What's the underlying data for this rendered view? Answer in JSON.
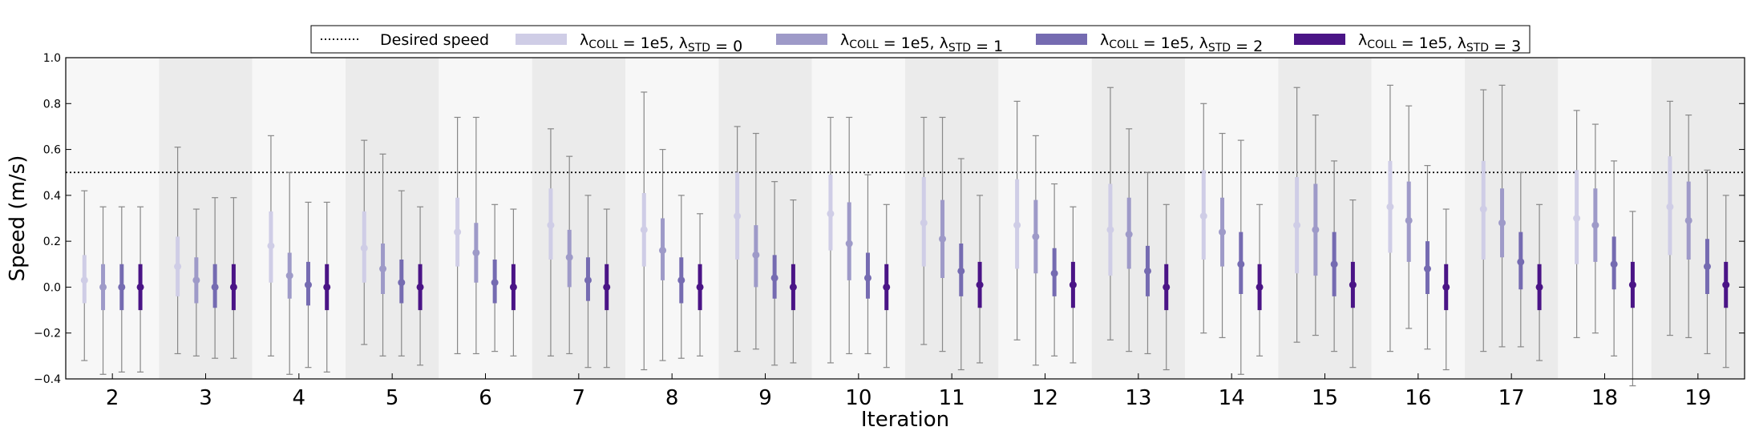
{
  "chart_data": {
    "type": "errorbar",
    "title": "",
    "xlabel": "Iteration",
    "ylabel": "Speed (m/s)",
    "ylim": [
      -0.4,
      1.0
    ],
    "y_ticks": [
      "−0.4",
      "−0.2",
      "0.0",
      "0.2",
      "0.4",
      "0.6",
      "0.8",
      "1.0"
    ],
    "y_tick_values": [
      -0.4,
      -0.2,
      0.0,
      0.2,
      0.4,
      0.6,
      0.8,
      1.0
    ],
    "categories": [
      "2",
      "3",
      "4",
      "5",
      "6",
      "7",
      "8",
      "9",
      "10",
      "11",
      "12",
      "13",
      "14",
      "15",
      "16",
      "17",
      "18",
      "19"
    ],
    "reference_line": {
      "label": "Desired speed",
      "value": 0.5,
      "style": "dotted",
      "color": "#000000"
    },
    "legend": {
      "position": "top-center",
      "entries": [
        {
          "key": "desired",
          "label": "Desired speed"
        },
        {
          "key": "s0",
          "prefix": "λ",
          "sub1": "COLL",
          "mid": " = 1e5, λ",
          "sub2": "STD",
          "suffix": " = 0"
        },
        {
          "key": "s1",
          "prefix": "λ",
          "sub1": "COLL",
          "mid": " = 1e5, λ",
          "sub2": "STD",
          "suffix": " = 1"
        },
        {
          "key": "s2",
          "prefix": "λ",
          "sub1": "COLL",
          "mid": " = 1e5, λ",
          "sub2": "STD",
          "suffix": " = 2"
        },
        {
          "key": "s3",
          "prefix": "λ",
          "sub1": "COLL",
          "mid": " = 1e5, λ",
          "sub2": "STD",
          "suffix": " = 3"
        }
      ]
    },
    "series": [
      {
        "name": "λCOLL = 1e5, λSTD = 0",
        "color": "#cfcde6",
        "mean": [
          0.03,
          0.09,
          0.18,
          0.17,
          0.24,
          0.27,
          0.25,
          0.31,
          0.32,
          0.28,
          0.27,
          0.25,
          0.31,
          0.27,
          0.35,
          0.34,
          0.3,
          0.35
        ],
        "std_lo": [
          -0.07,
          -0.04,
          0.02,
          0.02,
          0.09,
          0.12,
          0.09,
          0.12,
          0.16,
          0.09,
          0.08,
          0.05,
          0.12,
          0.06,
          0.15,
          0.12,
          0.1,
          0.14
        ],
        "std_hi": [
          0.14,
          0.22,
          0.33,
          0.33,
          0.39,
          0.43,
          0.41,
          0.5,
          0.49,
          0.48,
          0.47,
          0.45,
          0.51,
          0.48,
          0.55,
          0.55,
          0.51,
          0.57
        ],
        "min": [
          -0.32,
          -0.29,
          -0.3,
          -0.25,
          -0.29,
          -0.3,
          -0.36,
          -0.28,
          -0.33,
          -0.25,
          -0.23,
          -0.23,
          -0.2,
          -0.24,
          -0.28,
          -0.28,
          -0.22,
          -0.21
        ],
        "max": [
          0.42,
          0.61,
          0.66,
          0.64,
          0.74,
          0.69,
          0.85,
          0.7,
          0.74,
          0.74,
          0.81,
          0.87,
          0.8,
          0.87,
          0.88,
          0.86,
          0.77,
          0.81
        ]
      },
      {
        "name": "λCOLL = 1e5, λSTD = 1",
        "color": "#9e9ac8",
        "mean": [
          0.0,
          0.03,
          0.05,
          0.08,
          0.15,
          0.13,
          0.16,
          0.14,
          0.19,
          0.21,
          0.22,
          0.23,
          0.24,
          0.25,
          0.29,
          0.28,
          0.27,
          0.29
        ],
        "std_lo": [
          -0.1,
          -0.07,
          -0.05,
          -0.03,
          0.02,
          0.0,
          0.03,
          0.0,
          0.03,
          0.04,
          0.06,
          0.08,
          0.09,
          0.05,
          0.11,
          0.13,
          0.11,
          0.12
        ],
        "std_hi": [
          0.1,
          0.13,
          0.15,
          0.19,
          0.28,
          0.25,
          0.3,
          0.27,
          0.37,
          0.38,
          0.38,
          0.39,
          0.39,
          0.45,
          0.46,
          0.43,
          0.43,
          0.46
        ],
        "min": [
          -0.38,
          -0.3,
          -0.38,
          -0.3,
          -0.29,
          -0.29,
          -0.32,
          -0.27,
          -0.29,
          -0.28,
          -0.34,
          -0.28,
          -0.22,
          -0.21,
          -0.18,
          -0.26,
          -0.2,
          -0.22
        ],
        "max": [
          0.35,
          0.34,
          0.5,
          0.58,
          0.74,
          0.57,
          0.6,
          0.67,
          0.74,
          0.74,
          0.66,
          0.69,
          0.67,
          0.75,
          0.79,
          0.88,
          0.71,
          0.75
        ]
      },
      {
        "name": "λCOLL = 1e5, λSTD = 2",
        "color": "#756bb1",
        "mean": [
          0.0,
          0.0,
          0.01,
          0.02,
          0.02,
          0.03,
          0.03,
          0.04,
          0.04,
          0.07,
          0.06,
          0.07,
          0.1,
          0.1,
          0.08,
          0.11,
          0.1,
          0.09
        ],
        "std_lo": [
          -0.1,
          -0.09,
          -0.08,
          -0.07,
          -0.07,
          -0.06,
          -0.07,
          -0.05,
          -0.05,
          -0.04,
          -0.04,
          -0.04,
          -0.03,
          -0.04,
          -0.03,
          -0.01,
          -0.01,
          -0.03
        ],
        "std_hi": [
          0.1,
          0.1,
          0.11,
          0.12,
          0.12,
          0.13,
          0.13,
          0.14,
          0.15,
          0.19,
          0.17,
          0.18,
          0.24,
          0.24,
          0.2,
          0.24,
          0.22,
          0.21
        ],
        "min": [
          -0.37,
          -0.31,
          -0.35,
          -0.3,
          -0.28,
          -0.35,
          -0.31,
          -0.34,
          -0.29,
          -0.36,
          -0.3,
          -0.29,
          -0.38,
          -0.28,
          -0.27,
          -0.26,
          -0.3,
          -0.29
        ],
        "max": [
          0.35,
          0.39,
          0.37,
          0.42,
          0.36,
          0.4,
          0.4,
          0.46,
          0.49,
          0.56,
          0.45,
          0.5,
          0.64,
          0.55,
          0.53,
          0.5,
          0.55,
          0.51
        ]
      },
      {
        "name": "λCOLL = 1e5, λSTD = 3",
        "color": "#4a1486",
        "mean": [
          0.0,
          0.0,
          0.0,
          0.0,
          0.0,
          0.0,
          0.0,
          0.0,
          0.0,
          0.01,
          0.01,
          0.0,
          0.0,
          0.01,
          0.0,
          0.0,
          0.01,
          0.01
        ],
        "std_lo": [
          -0.1,
          -0.1,
          -0.1,
          -0.1,
          -0.1,
          -0.1,
          -0.1,
          -0.1,
          -0.1,
          -0.09,
          -0.09,
          -0.1,
          -0.1,
          -0.09,
          -0.1,
          -0.1,
          -0.09,
          -0.09
        ],
        "std_hi": [
          0.1,
          0.1,
          0.1,
          0.1,
          0.1,
          0.1,
          0.1,
          0.1,
          0.1,
          0.11,
          0.11,
          0.1,
          0.1,
          0.11,
          0.1,
          0.1,
          0.11,
          0.11
        ],
        "min": [
          -0.37,
          -0.31,
          -0.37,
          -0.34,
          -0.3,
          -0.35,
          -0.3,
          -0.33,
          -0.35,
          -0.33,
          -0.33,
          -0.36,
          -0.3,
          -0.35,
          -0.36,
          -0.32,
          -0.43,
          -0.35
        ],
        "max": [
          0.35,
          0.39,
          0.37,
          0.35,
          0.34,
          0.34,
          0.32,
          0.38,
          0.36,
          0.4,
          0.35,
          0.36,
          0.36,
          0.38,
          0.34,
          0.36,
          0.33,
          0.4
        ]
      }
    ]
  }
}
